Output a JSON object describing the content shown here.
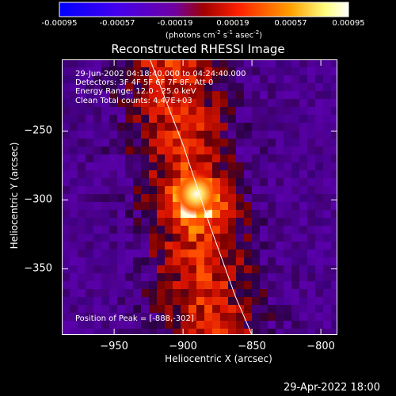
{
  "chart_data": {
    "type": "heatmap",
    "colorbar": {
      "ticks": [
        "-0.00095",
        "-0.00057",
        "-0.00019",
        "0.00019",
        "0.00057",
        "0.00095"
      ],
      "range": [
        -0.00095,
        0.00095
      ],
      "unit_text": "(photons cm",
      "unit_parts": [
        "(photons cm",
        "-2",
        " s",
        "-1",
        " asec",
        "-2",
        ")"
      ],
      "colors": [
        "#0000ff",
        "#5a00d0",
        "#7a00a0",
        "#b00000",
        "#ff4000",
        "#ffa000",
        "#ffffff"
      ]
    },
    "title": "Reconstructed RHESSI Image",
    "xlabel": "Heliocentric X (arcsec)",
    "ylabel": "Heliocentric Y (arcsec)",
    "xlim": [
      -988,
      -788
    ],
    "ylim": [
      -398,
      -198
    ],
    "x_ticks": [
      -950,
      -900,
      -850,
      -800
    ],
    "y_ticks": [
      -250,
      -300,
      -350
    ],
    "x_tick_labels": [
      "−950",
      "−900",
      "−850",
      "−800"
    ],
    "y_tick_labels": [
      "−250",
      "−300",
      "−350"
    ],
    "annotations": [
      "29-Jun-2002 04:18:40.000 to 04:24:40.000",
      "Detectors: 3F 4F 5F 6F 7F 8F, Att 0",
      "Energy Range: 12.0 - 25.0 keV",
      "Clean     Total counts: 4.47E+03"
    ],
    "peak_text": "Position of Peak = [-888,-302]",
    "peak": {
      "x": -888,
      "y": -302
    },
    "limb_curve": [
      [
        -924,
        -198
      ],
      [
        -900,
        -260
      ],
      [
        -880,
        -320
      ],
      [
        -862,
        -370
      ],
      [
        -850,
        -398
      ]
    ]
  },
  "footer_timestamp": "29-Apr-2022 18:00"
}
